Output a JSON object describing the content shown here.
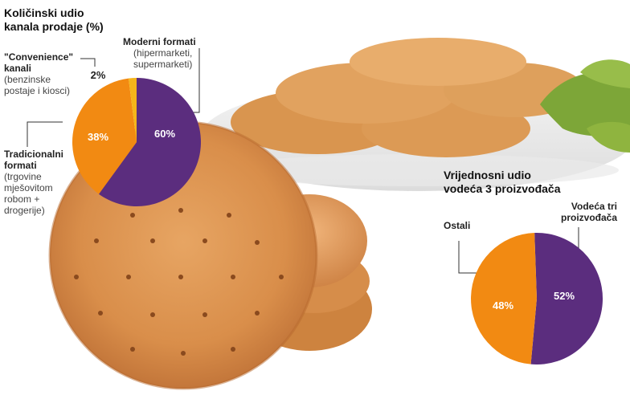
{
  "chart_data": [
    {
      "type": "pie",
      "title": "Količinski udio\nkanala prodaje (%)",
      "slices": [
        {
          "label": "Moderni formati",
          "sublabel": "(hipermarketi,\nsupermarketi)",
          "value": 60,
          "display": "60%",
          "color": "#5b2d7e"
        },
        {
          "label": "Tradicionalni\nformati",
          "sublabel": "(trgovine\nmješovitom\nrobom +\ndrogerije)",
          "value": 38,
          "display": "38%",
          "color": "#f28a12"
        },
        {
          "label": "\"Convenience\"\nkanali",
          "sublabel": "(benzinske\npostaje i kiosci)",
          "value": 2,
          "display": "2%",
          "color": "#f5b51a"
        }
      ]
    },
    {
      "type": "pie",
      "title": "Vrijednosni udio\nvodeća 3 proizvođača",
      "slices": [
        {
          "label": "Vodeća tri\nproizvođača",
          "value": 52,
          "display": "52%",
          "color": "#5b2d7e"
        },
        {
          "label": "Ostali",
          "value": 48,
          "display": "48%",
          "color": "#f28a12"
        }
      ]
    }
  ]
}
